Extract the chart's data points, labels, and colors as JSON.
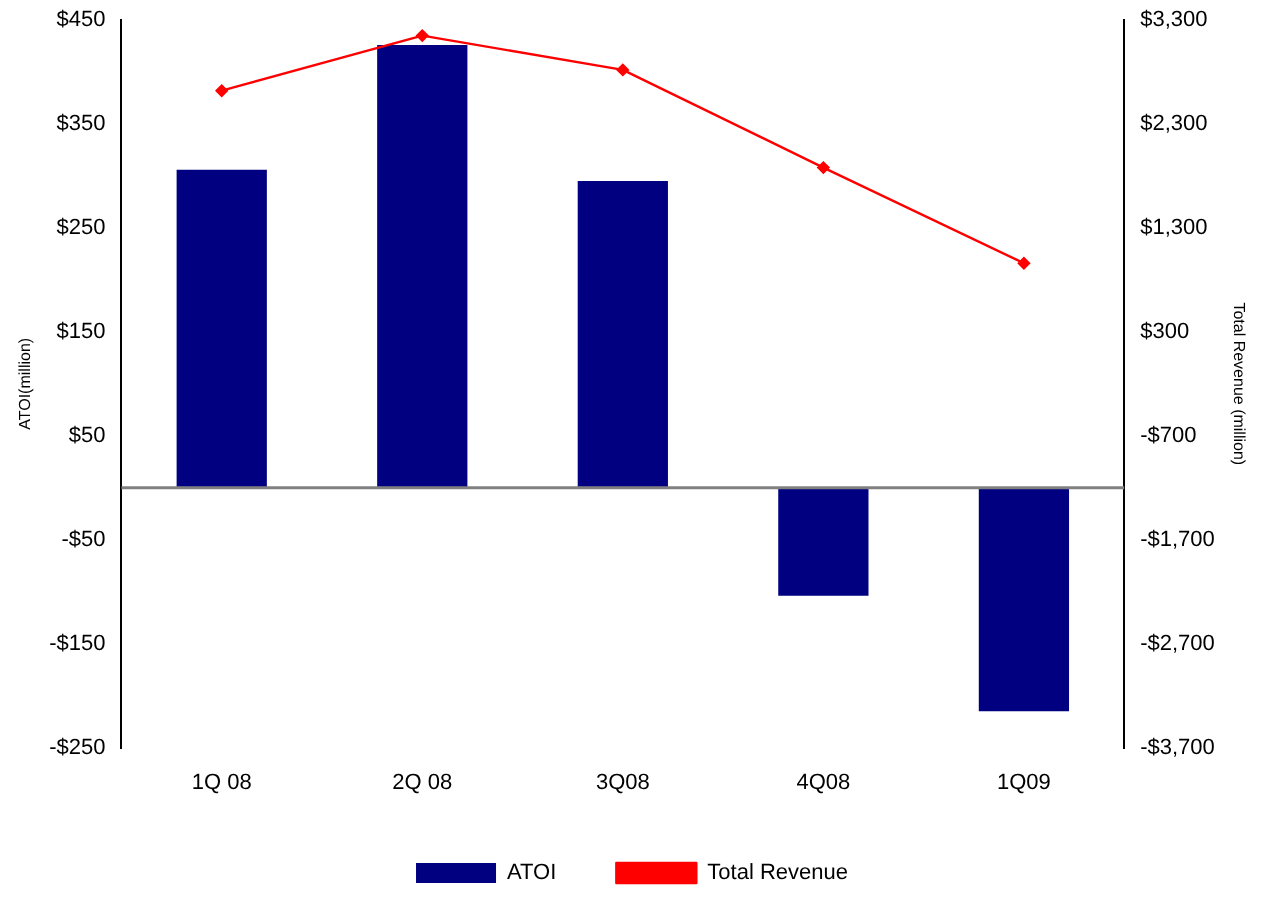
{
  "chart_data": {
    "type": "bar",
    "categories": [
      "1Q 08",
      "2Q 08",
      "3Q08",
      "4Q08",
      "1Q09"
    ],
    "series": [
      {
        "name": "ATOI",
        "color": "#000080",
        "values": [
          306,
          426,
          295,
          -104,
          -215
        ]
      },
      {
        "name": "Total Revenue",
        "type": "line",
        "axis": "y2",
        "color": "#ff0000",
        "marker": "diamond",
        "values": [
          2620,
          3150,
          2820,
          1880,
          960
        ]
      }
    ],
    "ylabel": "ATOI(million)",
    "y2label": "Total Revenue (million)",
    "ylim": [
      -250,
      450
    ],
    "yticks": [
      {
        "value": -250,
        "label": "-$250"
      },
      {
        "value": -150,
        "label": "-$150"
      },
      {
        "value": -50,
        "label": "-$50"
      },
      {
        "value": 50,
        "label": "$50"
      },
      {
        "value": 150,
        "label": "$150"
      },
      {
        "value": 250,
        "label": "$250"
      },
      {
        "value": 350,
        "label": "$350"
      },
      {
        "value": 450,
        "label": "$450"
      }
    ],
    "y2lim": [
      -3700,
      3300
    ],
    "y2ticks": [
      {
        "value": -3700,
        "label": "-$3,700"
      },
      {
        "value": -2700,
        "label": "-$2,700"
      },
      {
        "value": -1700,
        "label": "-$1,700"
      },
      {
        "value": -700,
        "label": "-$700"
      },
      {
        "value": 300,
        "label": "$300"
      },
      {
        "value": 1300,
        "label": "$1,300"
      },
      {
        "value": 2300,
        "label": "$2,300"
      },
      {
        "value": 3300,
        "label": "$3,300"
      }
    ],
    "grid": false,
    "legend": "bottom"
  }
}
